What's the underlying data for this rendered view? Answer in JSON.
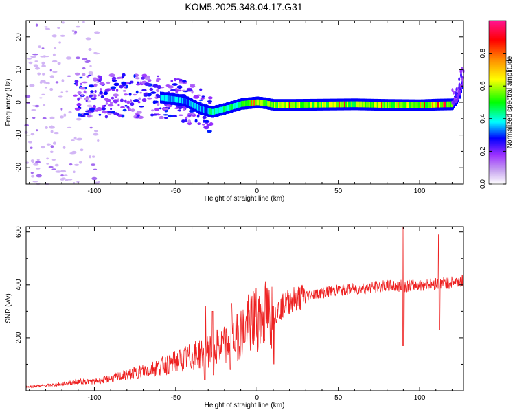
{
  "title": "KOM5.2025.348.04.17.G31",
  "chart_data": [
    {
      "type": "heatmap",
      "xlabel": "Height of straight line (km)",
      "ylabel": "Frequency (Hz)",
      "xlim": [
        -142,
        127
      ],
      "ylim": [
        -25,
        25
      ],
      "x_ticks": [
        -100,
        -50,
        0,
        50,
        100
      ],
      "y_ticks": [
        -20,
        -10,
        0,
        10,
        20
      ],
      "colorbar": {
        "label": "Normalized spectral amplitude",
        "range": [
          0,
          1
        ],
        "ticks": [
          0.0,
          0.2,
          0.4,
          0.6,
          0.8
        ],
        "colors": [
          "#ffffff",
          "#c9a7f0",
          "#9b30ff",
          "#0000ff",
          "#00ffff",
          "#00ff00",
          "#ffff00",
          "#ff8c00",
          "#ff0000",
          "#ff1493"
        ]
      },
      "ridge": {
        "x": [
          -142,
          -120,
          -100,
          -80,
          -60,
          -45,
          -35,
          -28,
          -20,
          -10,
          0,
          5,
          10,
          20,
          40,
          60,
          80,
          100,
          110,
          120,
          124,
          126
        ],
        "y": [
          3,
          2.5,
          2,
          2,
          1.5,
          0.5,
          -2,
          -3,
          -2,
          -0.5,
          0,
          -0.3,
          -0.8,
          -0.8,
          -0.7,
          -0.6,
          -0.8,
          -0.9,
          -0.7,
          -0.6,
          2,
          6
        ]
      }
    },
    {
      "type": "line",
      "xlabel": "Height of straight line (km)",
      "ylabel": "SNR (v/v)",
      "xlim": [
        -142,
        127
      ],
      "ylim": [
        0,
        620
      ],
      "x_ticks": [
        -100,
        -50,
        0,
        50,
        100
      ],
      "y_ticks": [
        200,
        400,
        600
      ],
      "series": [
        {
          "color": "#ee2222",
          "x": [
            -142,
            -130,
            -120,
            -110,
            -100,
            -90,
            -80,
            -70,
            -60,
            -50,
            -40,
            -30,
            -20,
            -10,
            0,
            10,
            20,
            30,
            40,
            50,
            60,
            70,
            80,
            90,
            100,
            110,
            120,
            127
          ],
          "values": [
            15,
            20,
            25,
            35,
            35,
            45,
            60,
            75,
            90,
            110,
            130,
            150,
            170,
            220,
            280,
            290,
            340,
            360,
            370,
            380,
            385,
            390,
            395,
            395,
            400,
            405,
            410,
            415
          ]
        }
      ],
      "spikes": [
        {
          "x": -32,
          "values": [
            320,
            40
          ]
        },
        {
          "x": -27,
          "values": [
            300,
            60
          ]
        },
        {
          "x": -16,
          "values": [
            330,
            80
          ]
        },
        {
          "x": 10,
          "values": [
            320,
            100
          ]
        },
        {
          "x": 90,
          "values": [
            620,
            170
          ]
        },
        {
          "x": 112,
          "values": [
            590,
            230
          ]
        }
      ]
    }
  ]
}
